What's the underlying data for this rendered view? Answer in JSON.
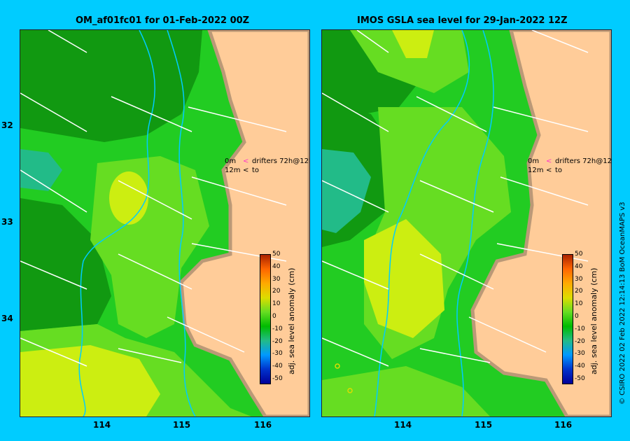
{
  "panels": [
    {
      "title": "OM_af01fc01 for 01-Feb-2022 00Z"
    },
    {
      "title": "IMOS GSLA sea level  for 29-Jan-2022 12Z"
    }
  ],
  "y_axis_labels": [
    "32",
    "33",
    "34"
  ],
  "x_axis_labels": [
    "114",
    "115",
    "116"
  ],
  "legend": {
    "line1_depth": "0m",
    "line1_arrow": "<",
    "line1_text": "drifters 72h@12h",
    "line2_depth": "12m",
    "line2_arrow": "<",
    "line2_text": "to"
  },
  "colorbar": {
    "label": "adj. sea level anomaly (cm)",
    "ticks": [
      "50",
      "40",
      "30",
      "20",
      "10",
      "0",
      "-10",
      "-20",
      "-30",
      "-40",
      "-50"
    ]
  },
  "credit": "© CSIRO 2022   02 Feb 2022 12:14:13 BoM OceanMAPS v3",
  "colors": {
    "ocean_dark": "#119911",
    "ocean_mid": "#22cc22",
    "ocean_light": "#66dd22",
    "ocean_yellow": "#ccee11",
    "teal": "#22bb88",
    "land": "#ffcc99",
    "coast": "#bb9977",
    "vector": "#ffffff",
    "contour": "#00ccff",
    "marker": "#ff33cc"
  }
}
